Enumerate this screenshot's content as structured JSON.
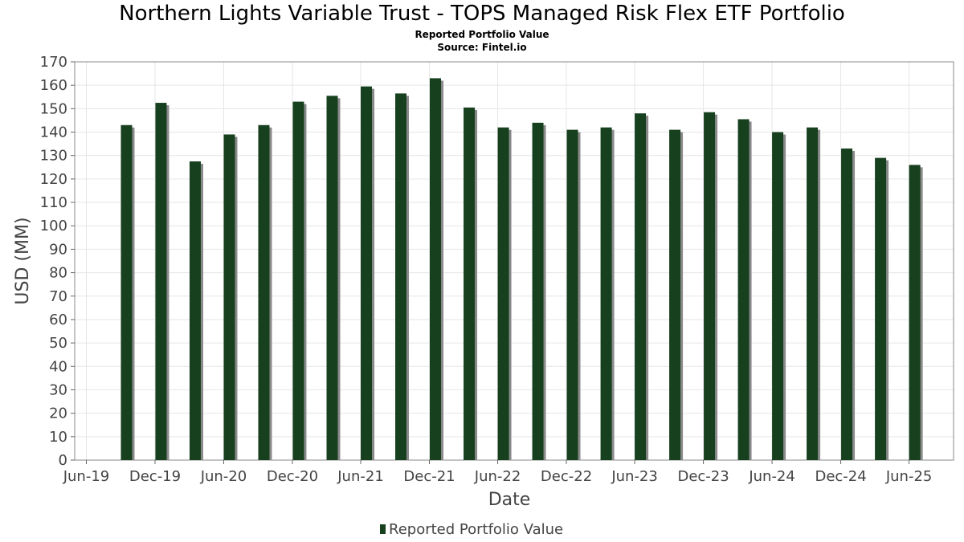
{
  "header": {
    "title": "Northern Lights Variable Trust - TOPS Managed Risk Flex ETF Portfolio",
    "subtitle": "Reported Portfolio Value",
    "source": "Source: Fintel.io"
  },
  "colors": {
    "bar": "#17401f",
    "bar_shadow": "#8a8a8a",
    "grid": "#e6e6e6",
    "frame": "#888888"
  },
  "chart_data": {
    "type": "bar",
    "title": "Northern Lights Variable Trust - TOPS Managed Risk Flex ETF Portfolio",
    "subtitle": "Reported Portfolio Value",
    "xlabel": "Date",
    "ylabel": "USD (MM)",
    "ylim": [
      0,
      170
    ],
    "yticks": [
      0,
      10,
      20,
      30,
      40,
      50,
      60,
      70,
      80,
      90,
      100,
      110,
      120,
      130,
      140,
      150,
      160,
      170
    ],
    "xticks": [
      "Jun-19",
      "Dec-19",
      "Jun-20",
      "Dec-20",
      "Jun-21",
      "Dec-21",
      "Jun-22",
      "Dec-22",
      "Jun-23",
      "Dec-23",
      "Jun-24",
      "Dec-24",
      "Jun-25"
    ],
    "grid": true,
    "legend": "bottom",
    "series": [
      {
        "name": "Reported Portfolio Value",
        "x": [
          "2019-09-30",
          "2019-12-31",
          "2020-03-31",
          "2020-06-30",
          "2020-09-30",
          "2020-12-31",
          "2021-03-31",
          "2021-06-30",
          "2021-09-30",
          "2021-12-31",
          "2022-03-31",
          "2022-06-30",
          "2022-09-30",
          "2022-12-31",
          "2023-03-31",
          "2023-06-30",
          "2023-09-30",
          "2023-12-31",
          "2024-03-31",
          "2024-06-30",
          "2024-09-30",
          "2024-12-31",
          "2025-03-31",
          "2025-06-30"
        ],
        "values": [
          143,
          152.5,
          127.5,
          139,
          143,
          153,
          155.5,
          159.5,
          156.5,
          163,
          150.5,
          142,
          144,
          141,
          142,
          148,
          141,
          148.5,
          145.5,
          140,
          142,
          133,
          129,
          126
        ]
      }
    ]
  }
}
